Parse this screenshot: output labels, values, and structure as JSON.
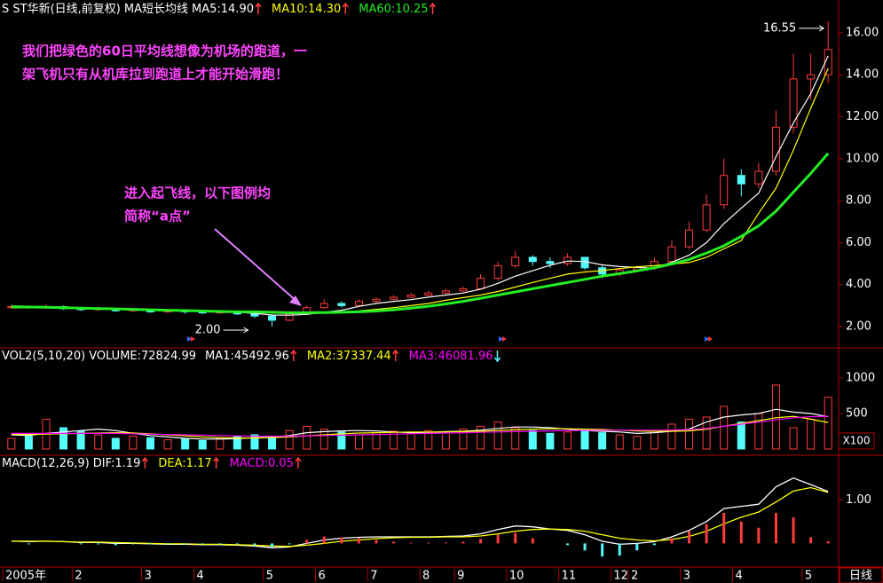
{
  "chart_data": [
    {
      "type": "candlestick",
      "title": "S ST华新(日线,前复权)",
      "subtitle": "MA短长均线",
      "label_separator": ":",
      "period_label": "日线",
      "up_color": "#ff3c3c",
      "down_color": "#54fcfc",
      "categories": [
        "2005年",
        null,
        null,
        null,
        "2",
        null,
        null,
        null,
        "3",
        null,
        null,
        "4",
        null,
        null,
        null,
        "5",
        null,
        null,
        "6",
        null,
        null,
        "7",
        null,
        null,
        "8",
        null,
        "9",
        null,
        null,
        "10",
        null,
        null,
        "11",
        null,
        null,
        "12",
        "2",
        null,
        null,
        "3",
        null,
        null,
        "4",
        null,
        null,
        null,
        "5",
        null
      ],
      "open": [
        2.9,
        2.95,
        2.9,
        2.95,
        2.85,
        2.8,
        2.85,
        2.75,
        2.8,
        2.7,
        2.75,
        2.7,
        2.65,
        2.7,
        2.6,
        2.5,
        2.3,
        2.6,
        2.9,
        3.1,
        3.0,
        3.2,
        3.3,
        3.4,
        3.5,
        3.6,
        3.7,
        3.8,
        4.3,
        4.9,
        5.3,
        5.1,
        5.0,
        5.3,
        4.8,
        4.5,
        4.7,
        4.8,
        5.1,
        5.8,
        6.6,
        7.8,
        9.2,
        8.8,
        9.4,
        11.5,
        13.8,
        14.0
      ],
      "high": [
        3.05,
        3.0,
        3.05,
        3.0,
        2.9,
        2.95,
        2.9,
        2.85,
        2.85,
        2.8,
        2.8,
        2.75,
        2.75,
        2.75,
        2.65,
        2.55,
        2.65,
        3.0,
        3.3,
        3.2,
        3.3,
        3.4,
        3.5,
        3.6,
        3.7,
        3.8,
        3.9,
        4.5,
        5.1,
        5.6,
        5.4,
        5.3,
        5.5,
        5.3,
        4.9,
        4.8,
        4.9,
        5.3,
        6.1,
        7.0,
        8.3,
        10.0,
        9.5,
        9.8,
        12.3,
        15.0,
        15.0,
        16.55
      ],
      "low": [
        2.85,
        2.85,
        2.85,
        2.8,
        2.75,
        2.75,
        2.7,
        2.7,
        2.65,
        2.65,
        2.6,
        2.6,
        2.6,
        2.55,
        2.4,
        2.0,
        2.25,
        2.55,
        2.85,
        2.9,
        2.95,
        3.1,
        3.25,
        3.35,
        3.45,
        3.55,
        3.65,
        3.75,
        4.2,
        4.8,
        4.9,
        4.8,
        4.9,
        4.7,
        4.3,
        4.4,
        4.6,
        4.7,
        5.0,
        5.7,
        6.5,
        7.6,
        8.2,
        8.6,
        9.2,
        11.2,
        12.8,
        13.6
      ],
      "close": [
        2.95,
        2.9,
        2.95,
        2.85,
        2.8,
        2.85,
        2.75,
        2.8,
        2.7,
        2.75,
        2.7,
        2.65,
        2.7,
        2.6,
        2.5,
        2.3,
        2.6,
        2.9,
        3.1,
        3.0,
        3.2,
        3.3,
        3.4,
        3.5,
        3.6,
        3.7,
        3.8,
        4.3,
        4.9,
        5.3,
        5.1,
        5.0,
        5.3,
        4.8,
        4.5,
        4.7,
        4.8,
        5.1,
        5.8,
        6.6,
        7.8,
        9.2,
        8.8,
        9.4,
        11.5,
        13.8,
        14.0,
        15.2
      ],
      "series": [
        {
          "name": "MA5",
          "color": "#ffffff",
          "trend": "up",
          "value_label": "14.90",
          "values": [
            2.9,
            2.9,
            2.92,
            2.9,
            2.88,
            2.85,
            2.82,
            2.8,
            2.78,
            2.76,
            2.74,
            2.72,
            2.7,
            2.68,
            2.63,
            2.55,
            2.54,
            2.58,
            2.68,
            2.78,
            2.96,
            3.1,
            3.2,
            3.28,
            3.4,
            3.5,
            3.6,
            3.78,
            4.06,
            4.4,
            4.66,
            4.92,
            5.12,
            5.1,
            4.94,
            4.86,
            4.82,
            4.78,
            5.06,
            5.4,
            6.0,
            6.9,
            7.64,
            8.36,
            10.1,
            11.7,
            13.1,
            14.9
          ]
        },
        {
          "name": "MA10",
          "color": "#ffff00",
          "trend": "up",
          "value_label": "14.30",
          "values": [
            2.9,
            2.9,
            2.9,
            2.9,
            2.89,
            2.88,
            2.86,
            2.84,
            2.82,
            2.8,
            2.78,
            2.76,
            2.74,
            2.72,
            2.7,
            2.65,
            2.62,
            2.62,
            2.65,
            2.68,
            2.75,
            2.82,
            2.9,
            3.0,
            3.1,
            3.25,
            3.38,
            3.5,
            3.67,
            3.88,
            4.1,
            4.3,
            4.5,
            4.6,
            4.67,
            4.76,
            4.85,
            4.9,
            4.98,
            5.05,
            5.3,
            5.7,
            6.1,
            7.4,
            8.6,
            10.4,
            12.4,
            14.3
          ]
        },
        {
          "name": "MA60",
          "color": "#22ee22",
          "trend": "up",
          "value_label": "10.25",
          "values": [
            2.95,
            2.93,
            2.92,
            2.9,
            2.88,
            2.86,
            2.84,
            2.82,
            2.8,
            2.78,
            2.76,
            2.74,
            2.72,
            2.7,
            2.7,
            2.68,
            2.66,
            2.66,
            2.67,
            2.68,
            2.7,
            2.74,
            2.8,
            2.88,
            2.97,
            3.08,
            3.2,
            3.35,
            3.5,
            3.65,
            3.8,
            3.95,
            4.1,
            4.25,
            4.4,
            4.52,
            4.65,
            4.8,
            4.98,
            5.2,
            5.5,
            5.85,
            6.3,
            6.8,
            7.5,
            8.4,
            9.3,
            10.25
          ]
        }
      ],
      "high_label": "16.55",
      "low_label": "2.00",
      "notes": [
        [
          "我们把绿色的60日平均线想像为机场的跑道，一",
          "架飞机只有从机库拉到跑道上才能开始滑跑！"
        ],
        [
          "进入起飞线，以下图例均",
          "简称“a点”"
        ]
      ],
      "ylim": [
        1.07,
        16.63
      ],
      "yticks": [
        {
          "value": 2,
          "label": "2.00"
        },
        {
          "value": 4,
          "label": "4.00"
        },
        {
          "value": 6,
          "label": "6.00"
        },
        {
          "value": 8,
          "label": "8.00"
        },
        {
          "value": 10,
          "label": "10.00"
        },
        {
          "value": 12,
          "label": "12.00"
        },
        {
          "value": 14,
          "label": "14.00"
        },
        {
          "value": 16,
          "label": "16.00"
        }
      ]
    },
    {
      "type": "bar",
      "title": "VOL2(5,10,20)",
      "unit_label": "X100",
      "series": [
        {
          "name": "VOLUME",
          "color": "#ffffff",
          "value_label": "72824.99",
          "values": [
            150,
            180,
            420,
            300,
            250,
            200,
            150,
            180,
            160,
            130,
            140,
            120,
            150,
            180,
            200,
            170,
            260,
            320,
            280,
            240,
            200,
            230,
            250,
            220,
            260,
            240,
            280,
            320,
            380,
            300,
            260,
            220,
            240,
            280,
            230,
            200,
            180,
            250,
            350,
            420,
            450,
            600,
            380,
            500,
            900,
            300,
            420,
            728.2499
          ]
        },
        {
          "name": "MA1",
          "color": "#ffffff",
          "trend": "up",
          "value_label": "45492.96",
          "values": [
            200,
            190,
            220,
            240,
            260,
            280,
            260,
            220,
            190,
            170,
            150,
            140,
            140,
            145,
            160,
            165,
            190,
            230,
            245,
            255,
            260,
            255,
            240,
            230,
            235,
            245,
            250,
            265,
            290,
            310,
            310,
            300,
            280,
            260,
            250,
            240,
            220,
            230,
            250,
            280,
            380,
            450,
            480,
            500,
            560,
            520,
            500,
            454.9296
          ]
        },
        {
          "name": "MA2",
          "color": "#ffff00",
          "trend": "up",
          "value_label": "37337.44",
          "values": [
            210,
            205,
            210,
            215,
            220,
            225,
            230,
            225,
            215,
            200,
            185,
            170,
            160,
            155,
            155,
            160,
            170,
            185,
            200,
            215,
            225,
            230,
            235,
            240,
            240,
            240,
            245,
            250,
            260,
            270,
            280,
            285,
            285,
            280,
            275,
            265,
            255,
            250,
            250,
            255,
            280,
            320,
            360,
            400,
            440,
            460,
            420,
            373.3744
          ]
        },
        {
          "name": "MA3",
          "color": "#ff00ff",
          "trend": "down",
          "value_label": "46081.96",
          "values": [
            220,
            220,
            220,
            220,
            220,
            220,
            220,
            215,
            210,
            205,
            200,
            195,
            190,
            185,
            180,
            180,
            180,
            185,
            190,
            195,
            200,
            205,
            210,
            215,
            220,
            225,
            230,
            235,
            240,
            245,
            250,
            255,
            260,
            262,
            265,
            265,
            265,
            265,
            268,
            272,
            290,
            320,
            350,
            380,
            410,
            440,
            455,
            460.8196
          ]
        }
      ],
      "ylim": [
        0,
        1200
      ],
      "yticks": [
        500,
        1000
      ]
    },
    {
      "type": "macd",
      "title": "MACD(12,26,9)",
      "series": [
        {
          "name": "DIF",
          "color": "#ffffff",
          "trend": "up",
          "value_label": "1.19",
          "values": [
            0.05,
            0.04,
            0.05,
            0.04,
            0.02,
            0.02,
            0,
            0,
            -0.01,
            -0.02,
            -0.02,
            -0.03,
            -0.03,
            -0.04,
            -0.06,
            -0.1,
            -0.08,
            0,
            0.08,
            0.12,
            0.14,
            0.15,
            0.15,
            0.15,
            0.15,
            0.16,
            0.17,
            0.22,
            0.32,
            0.4,
            0.38,
            0.33,
            0.3,
            0.2,
            0.05,
            -0.02,
            0,
            0.04,
            0.15,
            0.3,
            0.5,
            0.8,
            0.85,
            0.9,
            1.3,
            1.5,
            1.35,
            1.19
          ]
        },
        {
          "name": "DEA",
          "color": "#ffff00",
          "trend": "up",
          "value_label": "1.17",
          "values": [
            0.05,
            0.05,
            0.05,
            0.04,
            0.03,
            0.03,
            0.02,
            0.01,
            0,
            -0.01,
            -0.01,
            -0.02,
            -0.02,
            -0.03,
            -0.04,
            -0.06,
            -0.07,
            -0.04,
            0,
            0.05,
            0.08,
            0.11,
            0.13,
            0.14,
            0.14,
            0.15,
            0.15,
            0.17,
            0.22,
            0.28,
            0.32,
            0.33,
            0.32,
            0.28,
            0.2,
            0.12,
            0.08,
            0.06,
            0.09,
            0.16,
            0.28,
            0.45,
            0.6,
            0.72,
            0.95,
            1.2,
            1.28,
            1.17
          ]
        },
        {
          "name": "MACD",
          "color": "#ff00ff",
          "trend": "up",
          "value_label": "0.05",
          "values": [
            0,
            -0.02,
            0,
            0,
            -0.02,
            -0.02,
            -0.04,
            -0.02,
            -0.02,
            -0.02,
            -0.02,
            -0.02,
            -0.02,
            -0.02,
            -0.04,
            -0.08,
            -0.02,
            0.08,
            0.16,
            0.14,
            0.12,
            0.08,
            0.04,
            0.02,
            0.02,
            0.02,
            0.04,
            0.1,
            0.2,
            0.24,
            0.12,
            0,
            -0.04,
            -0.16,
            -0.3,
            -0.28,
            -0.16,
            -0.04,
            0.12,
            0.28,
            0.44,
            0.7,
            0.5,
            0.36,
            0.7,
            0.6,
            0.14,
            0.05
          ]
        }
      ],
      "ylim": [
        -0.46,
        1.84
      ],
      "yticks": [
        {
          "value": 1,
          "label": "1.00"
        }
      ]
    }
  ]
}
